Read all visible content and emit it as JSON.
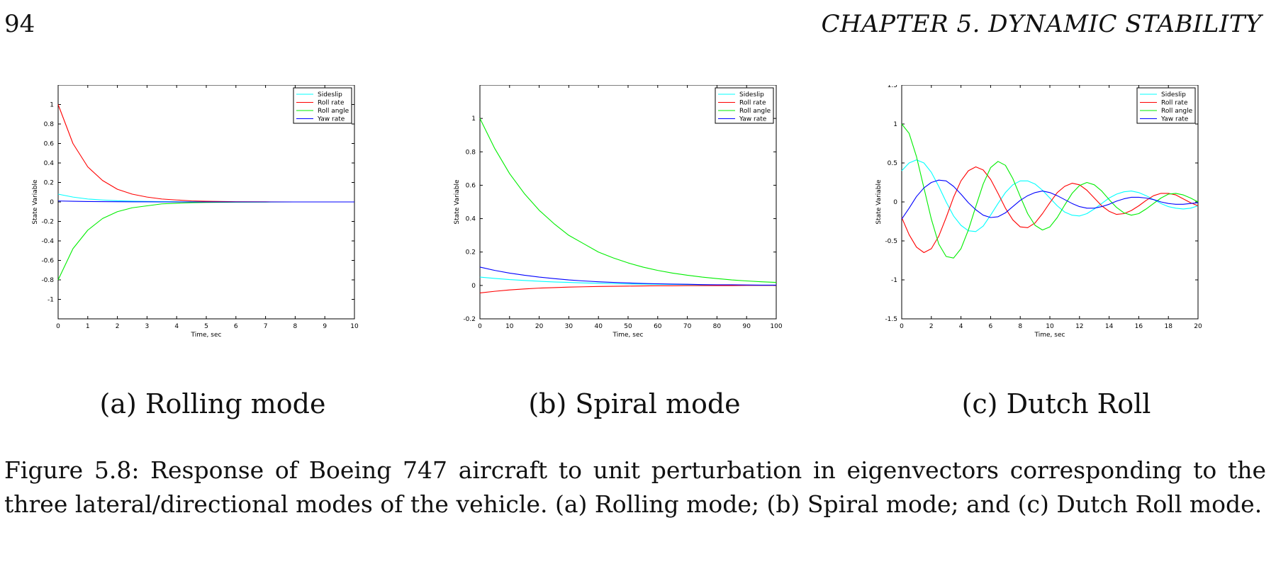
{
  "header": {
    "page_number": "94",
    "running_head": "CHAPTER 5.   DYNAMIC STABILITY"
  },
  "colors": {
    "Sideslip": "#00ffff",
    "Roll rate": "#ff0000",
    "Roll angle": "#00ee00",
    "Yaw rate": "#0000ff",
    "axes": "#000000"
  },
  "legend_entries": [
    "Sideslip",
    "Roll rate",
    "Roll angle",
    "Yaw rate"
  ],
  "subcaptions": {
    "a": "(a) Rolling mode",
    "b": "(b) Spiral mode",
    "c": "(c) Dutch Roll"
  },
  "caption": "Figure 5.8: Response of Boeing 747 aircraft to unit perturbation in eigenvectors corresponding to the three lateral/directional modes of the vehicle. (a) Rolling mode; (b) Spiral mode; and (c) Dutch Roll mode.",
  "chart_data": [
    {
      "type": "line",
      "xlabel": "Time, sec",
      "ylabel": "State Variable",
      "xlim": [
        0,
        10
      ],
      "ylim": [
        -1.2,
        1.2
      ],
      "xticks": [
        0,
        1,
        2,
        3,
        4,
        5,
        6,
        7,
        8,
        9,
        10
      ],
      "yticks": [
        -1,
        -0.8,
        -0.6,
        -0.4,
        -0.2,
        0,
        0.2,
        0.4,
        0.6,
        0.8,
        1
      ],
      "legend_position": "top-right",
      "grid": false,
      "x": [
        0,
        0.5,
        1,
        1.5,
        2,
        2.5,
        3,
        3.5,
        4,
        4.5,
        5,
        6,
        7,
        8,
        9,
        10
      ],
      "series": [
        {
          "name": "Sideslip",
          "values": [
            0.08,
            0.05,
            0.03,
            0.02,
            0.012,
            0.008,
            0.005,
            0.003,
            0.002,
            0.001,
            0.001,
            0,
            0,
            0,
            0,
            0
          ]
        },
        {
          "name": "Roll rate",
          "values": [
            1.0,
            0.6,
            0.36,
            0.22,
            0.13,
            0.08,
            0.05,
            0.03,
            0.02,
            0.011,
            0.007,
            0.002,
            0.001,
            0,
            0,
            0
          ]
        },
        {
          "name": "Roll angle",
          "values": [
            -0.8,
            -0.48,
            -0.29,
            -0.17,
            -0.1,
            -0.06,
            -0.04,
            -0.02,
            -0.013,
            -0.008,
            -0.005,
            -0.002,
            -0.001,
            0,
            0,
            0
          ]
        },
        {
          "name": "Yaw rate",
          "values": [
            0.01,
            0.007,
            0.004,
            0.003,
            0.002,
            0.001,
            0.001,
            0,
            0,
            0,
            0,
            0,
            0,
            0,
            0,
            0
          ]
        }
      ]
    },
    {
      "type": "line",
      "xlabel": "Time, sec",
      "ylabel": "State Variable",
      "xlim": [
        0,
        100
      ],
      "ylim": [
        -0.2,
        1.2
      ],
      "xticks": [
        0,
        10,
        20,
        30,
        40,
        50,
        60,
        70,
        80,
        90,
        100
      ],
      "yticks": [
        -0.2,
        0,
        0.2,
        0.4,
        0.6,
        0.8,
        1
      ],
      "legend_position": "top-right",
      "grid": false,
      "x": [
        0,
        5,
        10,
        15,
        20,
        25,
        30,
        35,
        40,
        45,
        50,
        55,
        60,
        65,
        70,
        75,
        80,
        85,
        90,
        95,
        100
      ],
      "series": [
        {
          "name": "Sideslip",
          "values": [
            0.05,
            0.042,
            0.035,
            0.03,
            0.025,
            0.021,
            0.018,
            0.015,
            0.013,
            0.011,
            0.009,
            0.008,
            0.007,
            0.006,
            0.005,
            0.004,
            0.003,
            0.003,
            0.002,
            0.002,
            0.002
          ]
        },
        {
          "name": "Roll rate",
          "values": [
            -0.045,
            -0.035,
            -0.027,
            -0.021,
            -0.016,
            -0.013,
            -0.01,
            -0.008,
            -0.006,
            -0.005,
            -0.004,
            -0.003,
            -0.002,
            -0.002,
            -0.001,
            -0.001,
            -0.001,
            -0.001,
            0,
            0,
            0
          ]
        },
        {
          "name": "Roll angle",
          "values": [
            1.0,
            0.82,
            0.67,
            0.55,
            0.45,
            0.37,
            0.3,
            0.25,
            0.2,
            0.165,
            0.135,
            0.11,
            0.09,
            0.074,
            0.061,
            0.05,
            0.041,
            0.033,
            0.027,
            0.022,
            0.018
          ]
        },
        {
          "name": "Yaw rate",
          "values": [
            0.11,
            0.09,
            0.074,
            0.061,
            0.05,
            0.041,
            0.033,
            0.027,
            0.022,
            0.018,
            0.015,
            0.012,
            0.01,
            0.008,
            0.007,
            0.005,
            0.004,
            0.004,
            0.003,
            0.002,
            0.002
          ]
        }
      ]
    },
    {
      "type": "line",
      "xlabel": "Time, sec",
      "ylabel": "State Variable",
      "xlim": [
        0,
        20
      ],
      "ylim": [
        -1.5,
        1.5
      ],
      "xticks": [
        0,
        2,
        4,
        6,
        8,
        10,
        12,
        14,
        16,
        18,
        20
      ],
      "yticks": [
        -1.5,
        -1,
        -0.5,
        0,
        0.5,
        1,
        1.5
      ],
      "legend_position": "top-right",
      "grid": false,
      "x": [
        0,
        0.5,
        1,
        1.5,
        2,
        2.5,
        3,
        3.5,
        4,
        4.5,
        5,
        5.5,
        6,
        6.5,
        7,
        7.5,
        8,
        8.5,
        9,
        9.5,
        10,
        10.5,
        11,
        11.5,
        12,
        12.5,
        13,
        13.5,
        14,
        14.5,
        15,
        15.5,
        16,
        16.5,
        17,
        17.5,
        18,
        18.5,
        19,
        19.5,
        20
      ],
      "series": [
        {
          "name": "Sideslip",
          "values": [
            0.4,
            0.5,
            0.54,
            0.5,
            0.38,
            0.2,
            0.0,
            -0.18,
            -0.3,
            -0.37,
            -0.38,
            -0.31,
            -0.17,
            -0.02,
            0.12,
            0.22,
            0.27,
            0.27,
            0.23,
            0.15,
            0.05,
            -0.05,
            -0.13,
            -0.17,
            -0.18,
            -0.15,
            -0.09,
            -0.02,
            0.05,
            0.1,
            0.13,
            0.14,
            0.12,
            0.08,
            0.03,
            -0.02,
            -0.06,
            -0.08,
            -0.09,
            -0.08,
            -0.05
          ]
        },
        {
          "name": "Roll rate",
          "values": [
            -0.2,
            -0.42,
            -0.58,
            -0.65,
            -0.6,
            -0.44,
            -0.2,
            0.06,
            0.27,
            0.4,
            0.45,
            0.41,
            0.29,
            0.11,
            -0.08,
            -0.23,
            -0.32,
            -0.33,
            -0.27,
            -0.15,
            -0.01,
            0.12,
            0.2,
            0.24,
            0.22,
            0.15,
            0.05,
            -0.05,
            -0.12,
            -0.16,
            -0.15,
            -0.11,
            -0.05,
            0.02,
            0.08,
            0.11,
            0.11,
            0.09,
            0.04,
            -0.01,
            -0.05
          ]
        },
        {
          "name": "Roll angle",
          "values": [
            1.0,
            0.88,
            0.58,
            0.18,
            -0.22,
            -0.54,
            -0.7,
            -0.72,
            -0.6,
            -0.36,
            -0.06,
            0.23,
            0.44,
            0.52,
            0.47,
            0.3,
            0.07,
            -0.15,
            -0.3,
            -0.36,
            -0.32,
            -0.2,
            -0.04,
            0.11,
            0.21,
            0.25,
            0.22,
            0.14,
            0.03,
            -0.07,
            -0.14,
            -0.17,
            -0.15,
            -0.09,
            -0.02,
            0.05,
            0.1,
            0.11,
            0.09,
            0.05,
            0.0
          ]
        },
        {
          "name": "Yaw rate",
          "values": [
            -0.22,
            -0.08,
            0.07,
            0.18,
            0.25,
            0.28,
            0.27,
            0.2,
            0.1,
            -0.01,
            -0.1,
            -0.17,
            -0.2,
            -0.19,
            -0.14,
            -0.06,
            0.02,
            0.08,
            0.12,
            0.14,
            0.12,
            0.08,
            0.03,
            -0.02,
            -0.06,
            -0.08,
            -0.08,
            -0.06,
            -0.03,
            0.01,
            0.04,
            0.06,
            0.06,
            0.05,
            0.03,
            0.0,
            -0.02,
            -0.03,
            -0.03,
            -0.02,
            -0.01
          ]
        }
      ]
    }
  ]
}
